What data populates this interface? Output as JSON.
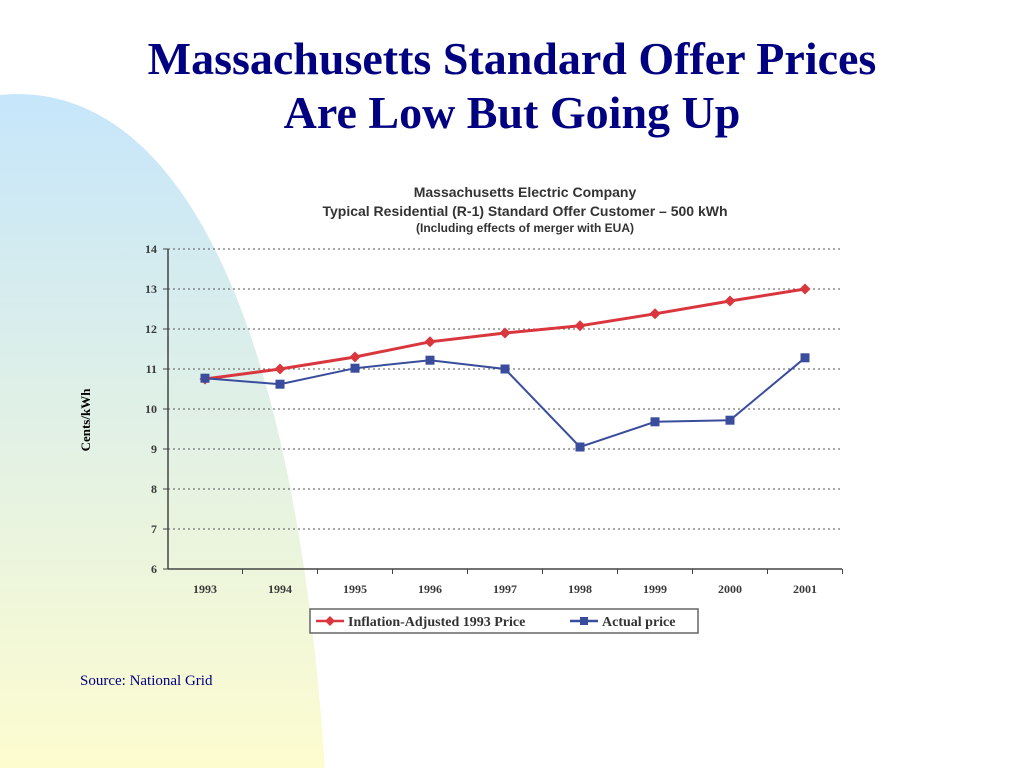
{
  "slide": {
    "title_line1": "Massachusetts Standard Offer Prices",
    "title_line2": "Are Low But Going Up",
    "source": "Source: National Grid"
  },
  "colors": {
    "title": "#000080",
    "inflation_series": "#d9363e",
    "actual_series": "#3a4d9c",
    "bg_swoosh_top": "#c6e6fb",
    "bg_swoosh_bottom": "#fdfccf"
  },
  "chart_data": {
    "type": "line",
    "title": "Massachusetts Electric Company",
    "subtitle": "Typical Residential (R-1) Standard Offer Customer – 500 kWh",
    "subtitle2": "(Including effects of merger with EUA)",
    "xlabel": "",
    "ylabel": "Cents/kWh",
    "ylim": [
      6,
      14
    ],
    "yticks": [
      "6",
      "7",
      "8",
      "9",
      "10",
      "11",
      "12",
      "13",
      "14"
    ],
    "categories": [
      "1993",
      "1994",
      "1995",
      "1996",
      "1997",
      "1998",
      "1999",
      "2000",
      "2001"
    ],
    "grid": true,
    "legend_position": "bottom",
    "series": [
      {
        "name": "Inflation-Adjusted 1993 Price",
        "marker": "diamond",
        "color": "#d9363e",
        "values": [
          10.75,
          11.0,
          11.3,
          11.68,
          11.9,
          12.08,
          12.38,
          12.7,
          13.0
        ]
      },
      {
        "name": "Actual price",
        "marker": "square",
        "color": "#3a4d9c",
        "values": [
          10.77,
          10.62,
          11.02,
          11.22,
          11.0,
          9.05,
          9.68,
          9.72,
          11.28
        ]
      }
    ]
  }
}
